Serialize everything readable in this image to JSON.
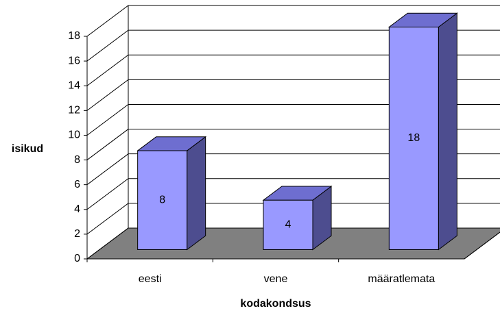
{
  "chart_data": {
    "type": "bar3d",
    "categories": [
      "eesti",
      "vene",
      "määratlemata"
    ],
    "values": [
      8,
      4,
      18
    ],
    "color": "#9999ff",
    "ylim": [
      0,
      18
    ],
    "yticks": [
      0,
      2,
      4,
      6,
      8,
      10,
      12,
      14,
      16,
      18
    ],
    "y_label": "isikud",
    "x_label": "kodakondsus",
    "grid": true
  }
}
